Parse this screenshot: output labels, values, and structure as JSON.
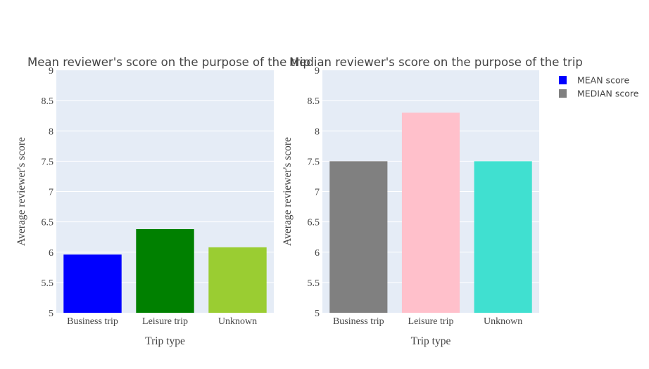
{
  "chart_data": [
    {
      "type": "bar",
      "title": "Mean reviewer's score on the purpose of the trip",
      "xlabel": "Trip type",
      "ylabel": "Average reviewer's score",
      "categories": [
        "Business trip",
        "Leisure trip",
        "Unknown"
      ],
      "values": [
        5.96,
        6.38,
        6.08
      ],
      "colors": [
        "#0000ff",
        "#008000",
        "#9acd32"
      ],
      "ylim": [
        5,
        9
      ],
      "yticks": [
        "5",
        "5.5",
        "6",
        "6.5",
        "7",
        "7.5",
        "8",
        "8.5",
        "9"
      ],
      "grid": true
    },
    {
      "type": "bar",
      "title": "Median reviewer's score on the purpose of the trip",
      "xlabel": "Trip type",
      "ylabel": "Average reviewer's score",
      "categories": [
        "Business trip",
        "Leisure trip",
        "Unknown"
      ],
      "values": [
        7.5,
        8.3,
        7.5
      ],
      "colors": [
        "#808080",
        "#ffc0cb",
        "#40e0d0"
      ],
      "ylim": [
        5,
        9
      ],
      "yticks": [
        "5",
        "5.5",
        "6",
        "6.5",
        "7",
        "7.5",
        "8",
        "8.5",
        "9"
      ],
      "grid": true
    }
  ],
  "legend": {
    "position": "top-right",
    "items": [
      {
        "label": "MEAN score",
        "color": "#0000ff"
      },
      {
        "label": "MEDIAN score",
        "color": "#808080"
      }
    ]
  },
  "colors": {
    "plot_background": "#e5ecf6",
    "gridline": "#ffffff",
    "text": "#444444"
  }
}
